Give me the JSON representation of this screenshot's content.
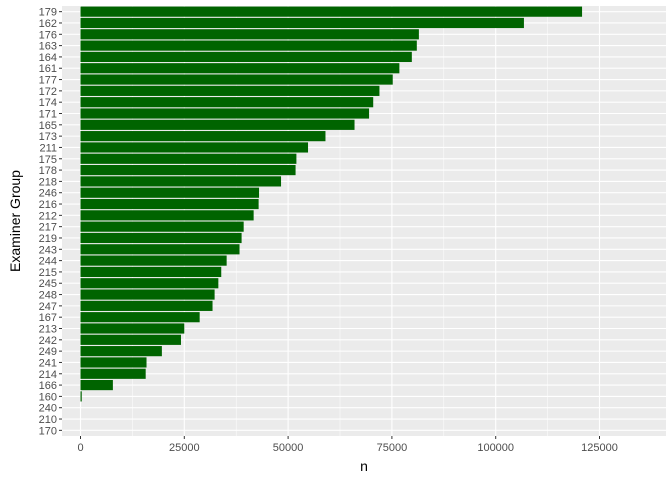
{
  "chart_data": {
    "type": "bar",
    "orientation": "horizontal",
    "xlabel": "n",
    "ylabel": "Examiner Group",
    "xlim": [
      0,
      127500
    ],
    "x_ticks": [
      0,
      25000,
      50000,
      75000,
      100000,
      125000
    ],
    "x_tick_labels": [
      "0",
      "25000",
      "50000",
      "75000",
      "100000",
      "125000"
    ],
    "grid": true,
    "bar_color": "#006400",
    "panel_background": "#ebebeb",
    "gridline_color": "#ffffff",
    "categories": [
      "179",
      "162",
      "176",
      "163",
      "164",
      "161",
      "177",
      "172",
      "174",
      "171",
      "165",
      "173",
      "211",
      "175",
      "178",
      "218",
      "246",
      "216",
      "212",
      "217",
      "219",
      "243",
      "244",
      "215",
      "245",
      "248",
      "247",
      "167",
      "213",
      "242",
      "249",
      "241",
      "214",
      "166",
      "160",
      "240",
      "210",
      "170"
    ],
    "values": [
      120800,
      106800,
      81500,
      81000,
      79800,
      76800,
      75200,
      72000,
      70500,
      69500,
      66000,
      59000,
      54800,
      52000,
      51800,
      48300,
      43000,
      42900,
      41700,
      39300,
      38800,
      38300,
      35200,
      33900,
      33200,
      32300,
      31800,
      28700,
      25000,
      24200,
      19600,
      15900,
      15700,
      7800,
      300,
      0,
      0,
      0
    ]
  }
}
